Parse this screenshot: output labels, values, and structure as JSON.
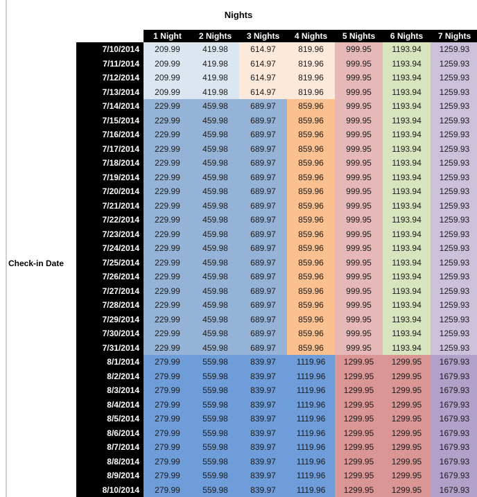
{
  "colors": {
    "header_bg": "#000000",
    "header_fg": "#FFFFFF",
    "light_blue": "#DCE6F1",
    "light_orange": "#FDE9D9",
    "medium_blue": "#95B3D7",
    "medium_orange": "#FAC090",
    "light_red": "#E6B9B8",
    "light_green": "#D7E4BD",
    "light_purple": "#CCC1DA",
    "dark_blue": "#6E9DD9",
    "dark_red": "#D99694",
    "dark_purple": "#B1A0C7"
  },
  "chart_data": {
    "type": "table",
    "title": "Nights",
    "row_axis_label": "Check-in Date",
    "columns": [
      "1 Night",
      "2 Nights",
      "3 Nights",
      "4 Nights",
      "5 Nights",
      "6 Nights",
      "7 Nights"
    ],
    "row_groups": [
      {
        "dates": [
          "7/10/2014",
          "7/11/2014",
          "7/12/2014",
          "7/13/2014"
        ],
        "prices": [
          209.99,
          419.98,
          614.97,
          819.96,
          999.95,
          1193.94,
          1259.93
        ],
        "cell_colors": [
          "#DCE6F1",
          "#DCE6F1",
          "#FDE9D9",
          "#FDE9D9",
          "#E6B9B8",
          "#D7E4BD",
          "#CCC1DA"
        ]
      },
      {
        "dates": [
          "7/14/2014",
          "7/15/2014",
          "7/16/2014",
          "7/17/2014",
          "7/18/2014",
          "7/19/2014",
          "7/20/2014",
          "7/21/2014",
          "7/22/2014",
          "7/23/2014",
          "7/24/2014",
          "7/25/2014",
          "7/26/2014",
          "7/27/2014",
          "7/28/2014",
          "7/29/2014",
          "7/30/2014",
          "7/31/2014"
        ],
        "prices": [
          229.99,
          459.98,
          689.97,
          859.96,
          999.95,
          1193.94,
          1259.93
        ],
        "cell_colors": [
          "#95B3D7",
          "#95B3D7",
          "#95B3D7",
          "#FAC090",
          "#E6B9B8",
          "#D7E4BD",
          "#CCC1DA"
        ]
      },
      {
        "dates": [
          "8/1/2014",
          "8/2/2014",
          "8/3/2014",
          "8/4/2014",
          "8/5/2014",
          "8/6/2014",
          "8/7/2014",
          "8/8/2014",
          "8/9/2014",
          "8/10/2014"
        ],
        "prices": [
          279.99,
          559.98,
          839.97,
          1119.96,
          1299.95,
          1299.95,
          1679.93
        ],
        "cell_colors": [
          "#6E9DD9",
          "#6E9DD9",
          "#6E9DD9",
          "#6E9DD9",
          "#D99694",
          "#D99694",
          "#B1A0C7"
        ]
      }
    ]
  }
}
